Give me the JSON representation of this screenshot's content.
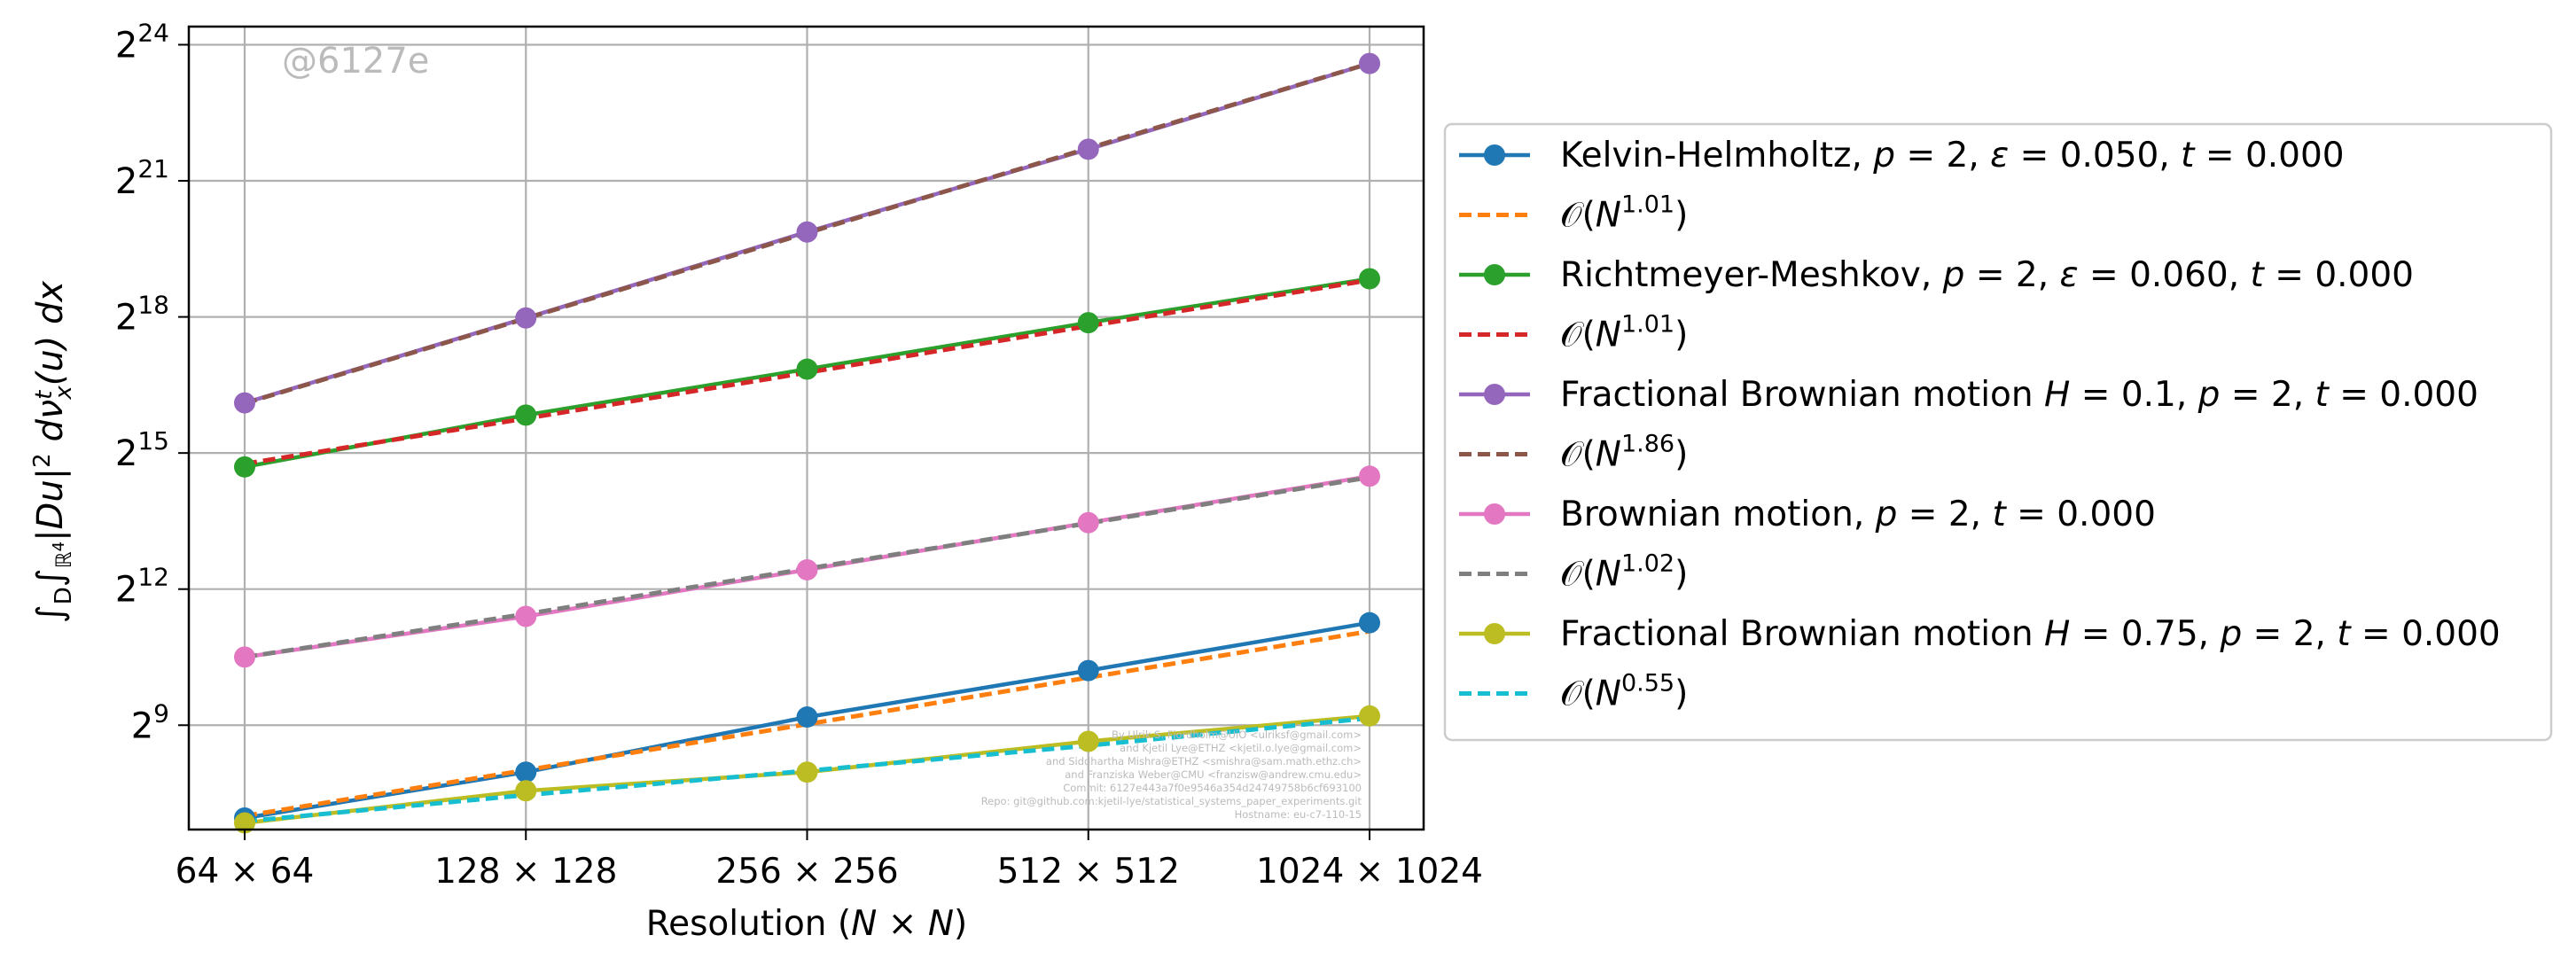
{
  "chart_data": {
    "type": "line",
    "xlabel": "Resolution (N × N)",
    "ylabel": "∫_D ∫_{ℝ^4} |Du|^2 dν_x^t(u) dx",
    "x": [
      64,
      128,
      256,
      512,
      1024
    ],
    "x_tick_labels": [
      "64 × 64",
      "128 × 128",
      "256 × 256",
      "512 × 512",
      "1024 × 1024"
    ],
    "x_scale": "log2",
    "y_scale": "log2",
    "ylim_log2": [
      6.7,
      24.4
    ],
    "y_ticks_log2": [
      9,
      12,
      15,
      18,
      21,
      24
    ],
    "grid": true,
    "legend_position": "right, outside plot",
    "watermark": "@6127e",
    "credits": [
      "By Ulrik S. Fjordholm@UiO <ulriksf@gmail.com>",
      "and Kjetil Lye@ETHZ <kjetil.o.lye@gmail.com>",
      "and Siddhartha Mishra@ETHZ <smishra@sam.math.ethz.ch>",
      "and Franziska Weber@CMU <franzisw@andrew.cmu.edu>",
      "Commit: 6127e443a7f0e9546a354d24749758b6cf693100",
      "Repo: git@github.com:kjetil-lye/statistical_systems_paper_experiments.git",
      "Hostname: eu-c7-110-15"
    ],
    "series": [
      {
        "name": "Kelvin-Helmholtz, p = 2, ε = 0.050, t = 0.000",
        "style": "solid-marker",
        "color": "#1f77b4",
        "values": [
          124,
          250,
          580,
          1180,
          2450
        ]
      },
      {
        "name": "𝒪(N^1.01)",
        "style": "dashed",
        "color": "#ff7f0e",
        "values": [
          128,
          258,
          520,
          1060,
          2150
        ]
      },
      {
        "name": "Richtmeyer-Meshkov, p = 2, ε = 0.060, t = 0.000",
        "style": "solid-marker",
        "color": "#2ca02c",
        "values": [
          26500,
          58500,
          118000,
          240000,
          470000
        ]
      },
      {
        "name": "𝒪(N^1.01)",
        "style": "dashed",
        "color": "#d62728",
        "values": [
          27800,
          55500,
          112000,
          228000,
          460000
        ]
      },
      {
        "name": "Fractional Brownian motion H = 0.1, p = 2, t = 0.000",
        "style": "solid-marker",
        "color": "#9467bd",
        "values": [
          70500,
          258000,
          960000,
          3400000,
          12600000
        ]
      },
      {
        "name": "𝒪(N^1.86)",
        "style": "dashed",
        "color": "#8c564b",
        "values": [
          70000,
          256000,
          945000,
          3450000,
          12600000
        ]
      },
      {
        "name": "Brownian motion, p = 2, t = 0.000",
        "style": "solid-marker",
        "color": "#e377c2",
        "values": [
          1450,
          2700,
          5500,
          11300,
          23000
        ]
      },
      {
        "name": "𝒪(N^1.02)",
        "style": "dashed",
        "color": "#7f7f7f",
        "values": [
          1450,
          2800,
          5600,
          11200,
          22600
        ]
      },
      {
        "name": "Fractional Brownian motion H = 0.75, p = 2, t = 0.000",
        "style": "solid-marker",
        "color": "#bcbd22",
        "values": [
          115,
          188,
          250,
          400,
          590
        ]
      },
      {
        "name": "𝒪(N^0.55)",
        "style": "dashed",
        "color": "#17becf",
        "values": [
          118,
          176,
          255,
          375,
          570
        ]
      }
    ]
  }
}
